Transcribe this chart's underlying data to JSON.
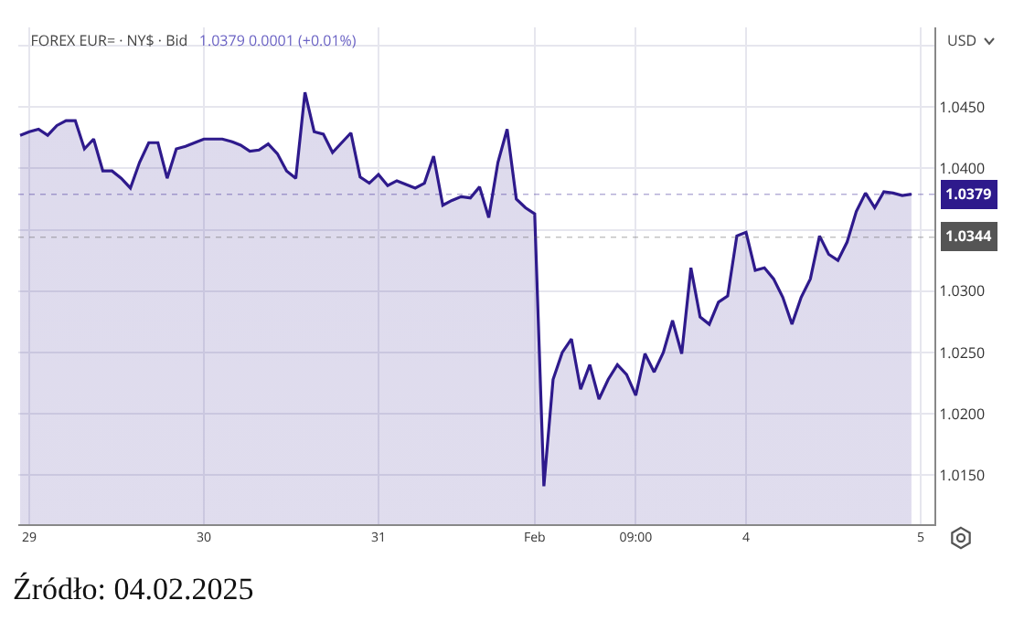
{
  "chart_data": {
    "type": "area",
    "title": "FOREX EUR= · NY$ · Bid",
    "subtitle": "1.0379 0.0001 (+0.01%)",
    "ylabel": "USD",
    "annotations": [
      "Źródło: 04.02.2025"
    ],
    "ref_lines": [
      {
        "axis": "y",
        "value": 1.0379,
        "label": "1.0379",
        "color": "#2e1a8c",
        "line_style": "dotted"
      },
      {
        "axis": "y",
        "value": 1.0344,
        "label": "1.0344",
        "color": "#555555",
        "line_style": "dotted"
      }
    ],
    "categories": [
      null,
      "29",
      null,
      null,
      null,
      null,
      null,
      null,
      null,
      null,
      null,
      null,
      null,
      null,
      null,
      null,
      null,
      null,
      null,
      null,
      "30",
      null,
      null,
      null,
      null,
      null,
      null,
      null,
      null,
      null,
      null,
      null,
      null,
      null,
      null,
      null,
      null,
      null,
      null,
      "31",
      null,
      null,
      null,
      null,
      null,
      null,
      null,
      null,
      null,
      null,
      null,
      null,
      null,
      null,
      null,
      null,
      "Feb",
      null,
      null,
      null,
      null,
      null,
      null,
      null,
      null,
      null,
      null,
      "09:00",
      null,
      null,
      null,
      null,
      null,
      null,
      null,
      null,
      null,
      null,
      null,
      "4",
      null,
      null,
      null,
      null,
      null,
      null,
      null,
      null,
      null,
      null,
      null,
      null,
      null,
      null,
      null,
      null,
      null,
      null,
      "5"
    ],
    "series": [
      {
        "color": "#2e1a8c",
        "values": [
          1.0427,
          1.043,
          1.0432,
          1.0427,
          1.0435,
          1.0439,
          1.0439,
          1.0416,
          1.0424,
          1.0398,
          1.0398,
          1.0392,
          1.0384,
          1.0405,
          1.0421,
          1.0421,
          1.0392,
          1.0416,
          1.0418,
          1.0421,
          1.0424,
          1.0424,
          1.0424,
          1.0422,
          1.0419,
          1.0414,
          1.0415,
          1.042,
          1.0412,
          1.0398,
          1.0392,
          1.0462,
          1.043,
          1.0428,
          1.0413,
          1.0421,
          1.0429,
          1.0393,
          1.0388,
          1.0395,
          1.0386,
          1.039,
          1.0387,
          1.0384,
          1.0388,
          1.041,
          1.037,
          1.0374,
          1.0377,
          1.0376,
          1.0385,
          1.036,
          1.0405,
          1.0432,
          1.0375,
          1.0368,
          1.0363,
          1.0141,
          1.0228,
          1.025,
          1.0261,
          1.022,
          1.024,
          1.0212,
          1.0228,
          1.024,
          1.0232,
          1.0215,
          1.0249,
          1.0234,
          1.025,
          1.0276,
          1.0249,
          1.0319,
          1.0279,
          1.0273,
          1.0291,
          1.0296,
          1.0345,
          1.0348,
          1.0317,
          1.0319,
          1.031,
          1.0295,
          1.0273,
          1.0295,
          1.031,
          1.0345,
          1.033,
          1.0325,
          1.034,
          1.0365,
          1.038,
          1.0368,
          1.0381,
          1.038,
          1.0378,
          1.0379,
          null
        ]
      }
    ],
    "ylim": [
      1.011,
      1.0515
    ],
    "yticks": [
      {
        "value": 1.015,
        "label": "1.0150"
      },
      {
        "value": 1.02,
        "label": "1.0200"
      },
      {
        "value": 1.025,
        "label": "1.0250"
      },
      {
        "value": 1.03,
        "label": "1.0300"
      },
      {
        "value": 1.035,
        "label": null
      },
      {
        "value": 1.04,
        "label": "1.0400"
      },
      {
        "value": 1.045,
        "label": "1.0450"
      },
      {
        "value": 1.05,
        "label": null
      }
    ],
    "grid": true,
    "marker": "none",
    "line_style": "solid"
  }
}
